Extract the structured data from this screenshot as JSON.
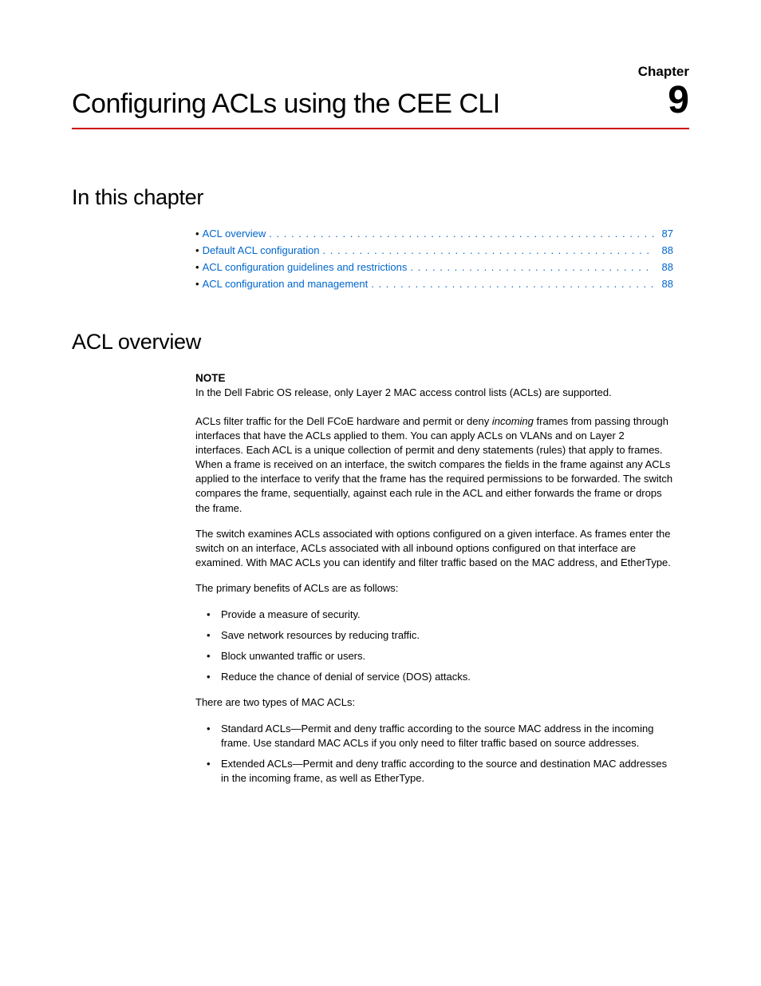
{
  "chapter_label": "Chapter",
  "chapter_number": "9",
  "chapter_title": "Configuring ACLs using the CEE CLI",
  "section_in_this_chapter": "In this chapter",
  "toc": [
    {
      "label": "ACL overview",
      "page": "87"
    },
    {
      "label": "Default ACL configuration",
      "page": "88"
    },
    {
      "label": "ACL configuration guidelines and restrictions",
      "page": "88"
    },
    {
      "label": "ACL configuration and management",
      "page": "88"
    }
  ],
  "section_overview": "ACL overview",
  "note_label": "NOTE",
  "note_text": "In the Dell Fabric OS release, only Layer 2 MAC access control lists (ACLs) are supported.",
  "para1_a": "ACLs filter traffic for the Dell FCoE hardware and permit or deny ",
  "para1_em": "incoming",
  "para1_b": " frames from passing through interfaces that have the ACLs applied to them. You can apply ACLs on VLANs and on Layer 2 interfaces. Each ACL is a unique collection of permit and deny statements (rules) that apply to frames. When a frame is received on an interface, the switch compares the fields in the frame against any ACLs applied to the interface to verify that the frame has the required permissions to be forwarded. The switch compares the frame, sequentially, against each rule in the ACL and either forwards the frame or drops the frame.",
  "para2": "The switch examines ACLs associated with options configured on a given interface. As frames enter the switch on an interface, ACLs associated with all inbound options configured on that interface are examined. With MAC ACLs you can identify and filter traffic based on the MAC address, and EtherType.",
  "para3": "The primary benefits of ACLs are as follows:",
  "benefits": [
    "Provide a measure of security.",
    "Save network resources by reducing traffic.",
    "Block unwanted traffic or users.",
    "Reduce the chance of denial of service (DOS) attacks."
  ],
  "para4": "There are two types of MAC ACLs:",
  "types": [
    "Standard ACLs—Permit and deny traffic according to the source MAC address in the incoming frame. Use standard MAC ACLs if you only need to filter traffic based on source addresses.",
    "Extended ACLs—Permit and deny traffic according to the source and destination MAC addresses in the incoming frame, as well as EtherType."
  ],
  "colors": {
    "rule": "#cc0000",
    "link": "#0066cc",
    "text": "#000000",
    "bg": "#ffffff"
  }
}
